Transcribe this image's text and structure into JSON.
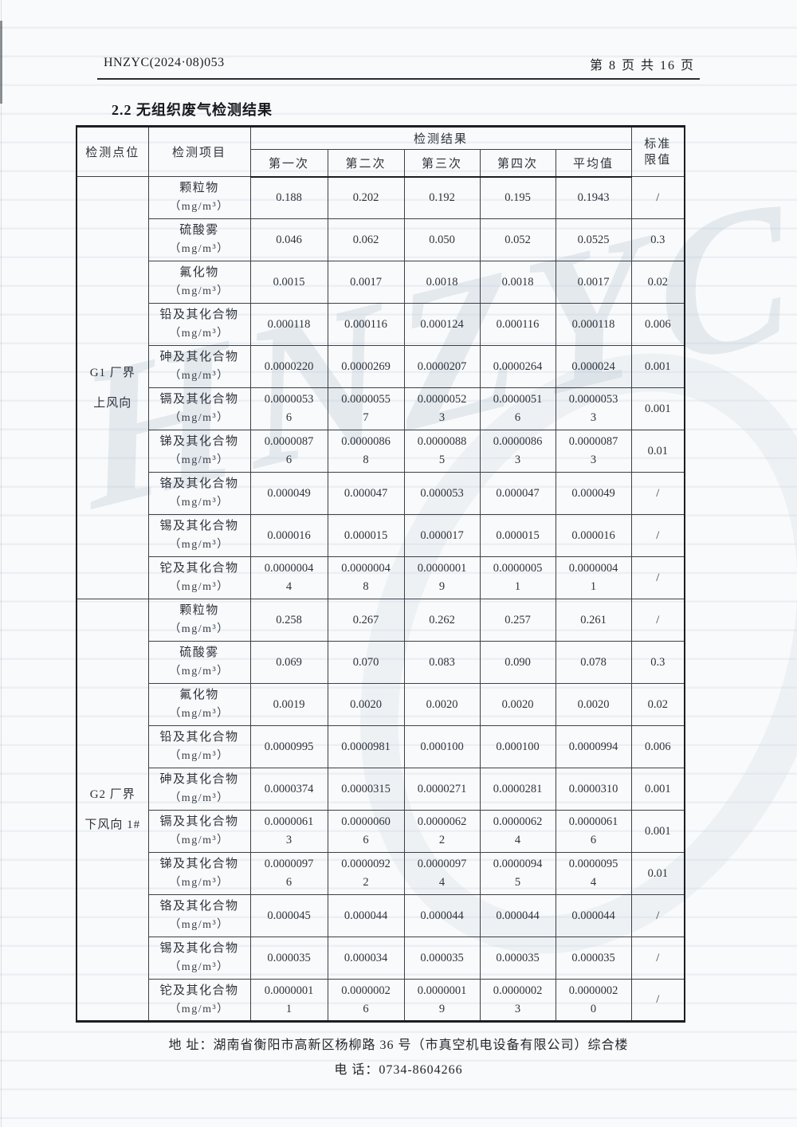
{
  "document": {
    "doc_number": "HNZYC(2024·08)053",
    "page_indicator": "第 8 页 共 16 页",
    "section_title": "2.2 无组织废气检测结果",
    "watermark_text": "HNZYC",
    "footer": {
      "address": "地 址：湖南省衡阳市高新区杨柳路 36 号（市真空机电设备有限公司）综合楼",
      "phone": "电 话：0734-8604266"
    }
  },
  "colors": {
    "ink": "#2e333b",
    "border": "#3c4046",
    "watermark": "#b6c4d2"
  },
  "table": {
    "headers": {
      "point": "检测点位",
      "item": "检测项目",
      "results_group": "检测结果",
      "runs": [
        "第一次",
        "第二次",
        "第三次",
        "第四次",
        "平均值"
      ],
      "limit_line1": "标准",
      "limit_line2": "限值"
    },
    "unit": "（mg/m³）",
    "groups": [
      {
        "point_line1": "G1 厂界",
        "point_line2": "上风向",
        "rows": [
          {
            "name": "颗粒物",
            "values": [
              "0.188",
              "0.202",
              "0.192",
              "0.195",
              "0.1943"
            ],
            "limit": "/"
          },
          {
            "name": "硫酸雾",
            "values": [
              "0.046",
              "0.062",
              "0.050",
              "0.052",
              "0.0525"
            ],
            "limit": "0.3"
          },
          {
            "name": "氟化物",
            "values": [
              "0.0015",
              "0.0017",
              "0.0018",
              "0.0018",
              "0.0017"
            ],
            "limit": "0.02"
          },
          {
            "name": "铅及其化合物",
            "values": [
              "0.000118",
              "0.000116",
              "0.000124",
              "0.000116",
              "0.000118"
            ],
            "limit": "0.006"
          },
          {
            "name": "砷及其化合物",
            "values": [
              "0.0000220",
              "0.0000269",
              "0.0000207",
              "0.0000264",
              "0.000024"
            ],
            "limit": "0.001"
          },
          {
            "name": "镉及其化合物",
            "values": [
              "0.00000536",
              "0.00000557",
              "0.00000523",
              "0.00000516",
              "0.00000533"
            ],
            "limit": "0.001"
          },
          {
            "name": "锑及其化合物",
            "values": [
              "0.00000876",
              "0.00000868",
              "0.00000885",
              "0.00000863",
              "0.00000873"
            ],
            "limit": "0.01"
          },
          {
            "name": "铬及其化合物",
            "values": [
              "0.000049",
              "0.000047",
              "0.000053",
              "0.000047",
              "0.000049"
            ],
            "limit": "/"
          },
          {
            "name": "锡及其化合物",
            "values": [
              "0.000016",
              "0.000015",
              "0.000017",
              "0.000015",
              "0.000016"
            ],
            "limit": "/"
          },
          {
            "name": "铊及其化合物",
            "values": [
              "0.00000044",
              "0.00000048",
              "0.00000019",
              "0.00000051",
              "0.00000041"
            ],
            "limit": "/"
          }
        ]
      },
      {
        "point_line1": "G2 厂界",
        "point_line2": "下风向 1#",
        "rows": [
          {
            "name": "颗粒物",
            "values": [
              "0.258",
              "0.267",
              "0.262",
              "0.257",
              "0.261"
            ],
            "limit": "/"
          },
          {
            "name": "硫酸雾",
            "values": [
              "0.069",
              "0.070",
              "0.083",
              "0.090",
              "0.078"
            ],
            "limit": "0.3"
          },
          {
            "name": "氟化物",
            "values": [
              "0.0019",
              "0.0020",
              "0.0020",
              "0.0020",
              "0.0020"
            ],
            "limit": "0.02"
          },
          {
            "name": "铅及其化合物",
            "values": [
              "0.0000995",
              "0.0000981",
              "0.000100",
              "0.000100",
              "0.0000994"
            ],
            "limit": "0.006"
          },
          {
            "name": "砷及其化合物",
            "values": [
              "0.0000374",
              "0.0000315",
              "0.0000271",
              "0.0000281",
              "0.0000310"
            ],
            "limit": "0.001"
          },
          {
            "name": "镉及其化合物",
            "values": [
              "0.00000613",
              "0.00000606",
              "0.00000622",
              "0.00000624",
              "0.00000616"
            ],
            "limit": "0.001"
          },
          {
            "name": "锑及其化合物",
            "values": [
              "0.00000976",
              "0.00000922",
              "0.00000974",
              "0.00000945",
              "0.00000954"
            ],
            "limit": "0.01"
          },
          {
            "name": "铬及其化合物",
            "values": [
              "0.000045",
              "0.000044",
              "0.000044",
              "0.000044",
              "0.000044"
            ],
            "limit": "/"
          },
          {
            "name": "锡及其化合物",
            "values": [
              "0.000035",
              "0.000034",
              "0.000035",
              "0.000035",
              "0.000035"
            ],
            "limit": "/"
          },
          {
            "name": "铊及其化合物",
            "values": [
              "0.00000011",
              "0.00000026",
              "0.00000019",
              "0.00000023",
              "0.00000020"
            ],
            "limit": "/"
          }
        ]
      }
    ]
  }
}
